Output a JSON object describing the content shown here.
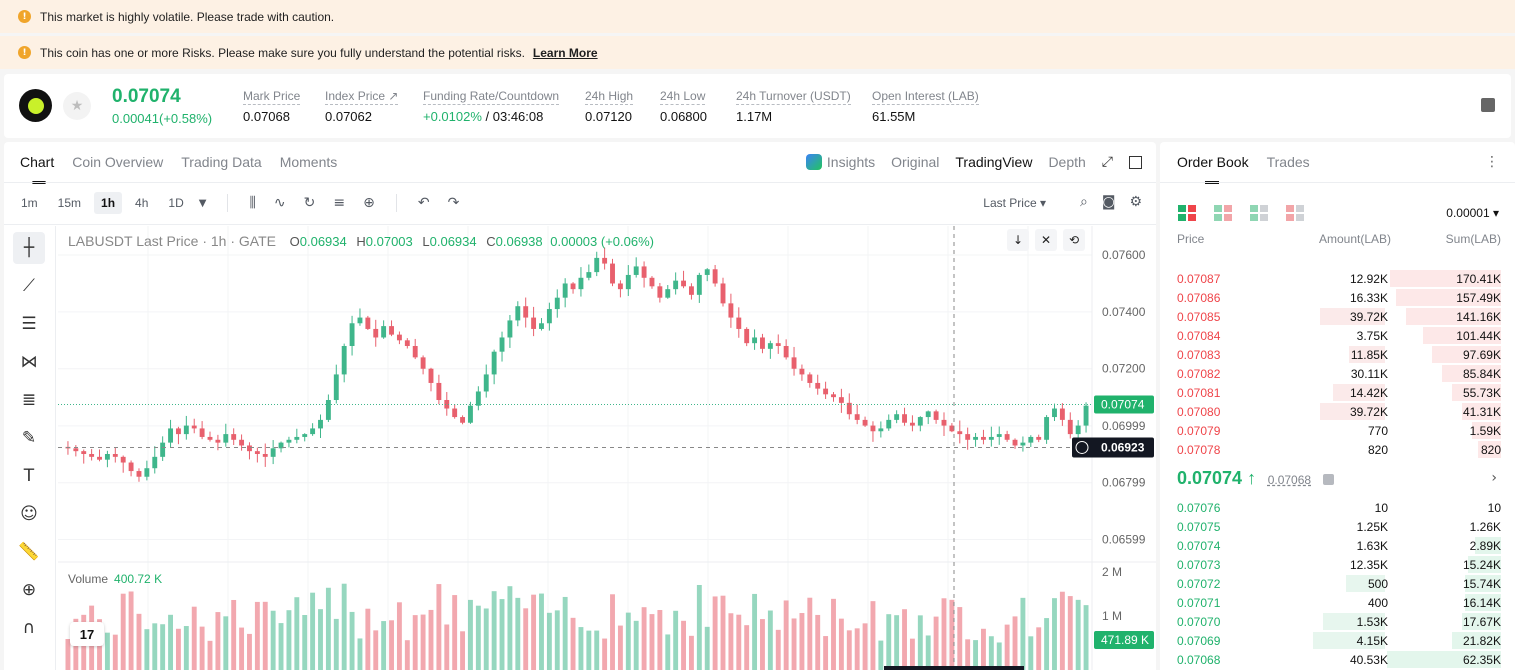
{
  "banners": {
    "volatile": "This market is highly volatile. Please trade with caution.",
    "risk": "This coin has one or more Risks. Please make sure you fully understand the potential risks.",
    "learn_more": "Learn More"
  },
  "ticker": {
    "last_price": "0.07074",
    "change": "0.00041(+0.58%)",
    "stats": [
      {
        "label": "Mark Price",
        "value": "0.07068"
      },
      {
        "label": "Index Price ↗",
        "value": "0.07062"
      },
      {
        "label": "Funding Rate/Countdown",
        "value_green": "+0.0102%",
        "value": " / 03:46:08"
      },
      {
        "label": "24h High",
        "value": "0.07120"
      },
      {
        "label": "24h Low",
        "value": "0.06800"
      },
      {
        "label": "24h Turnover (USDT)",
        "value": "1.17M"
      },
      {
        "label": "Open Interest (LAB)",
        "value": "61.55M"
      }
    ]
  },
  "chart_tabs": [
    "Chart",
    "Coin Overview",
    "Trading Data",
    "Moments"
  ],
  "view_tabs": {
    "insights": "Insights",
    "original": "Original",
    "tradingview": "TradingView",
    "depth": "Depth"
  },
  "intervals": [
    "1m",
    "15m",
    "1h",
    "4h",
    "1D"
  ],
  "price_source": "Last Price ▾",
  "legend": {
    "title": "LABUSDT Last Price · 1h · GATE",
    "o": "O",
    "o_val": "0.06934",
    "h": "H",
    "h_val": "0.07003",
    "l": "L",
    "l_val": "0.06934",
    "c": "C",
    "c_val": "0.06938",
    "chg": "0.00003 (+0.06%)"
  },
  "volume": {
    "label": "Volume",
    "value": "400.72 K",
    "last_label": "471.89 K"
  },
  "colors": {
    "up": "#3fb68b",
    "down": "#e8606d",
    "up_text": "#20b26c",
    "down_text": "#ef454a"
  },
  "chart_data": {
    "type": "candlestick",
    "price_axis_ticks": [
      "0.07600",
      "0.07400",
      "0.07200",
      "0.06999",
      "0.06799",
      "0.06599"
    ],
    "volume_axis_ticks": [
      "2 M",
      "1 M"
    ],
    "last_price_label": "0.07074",
    "crosshair_price_label": "0.06923",
    "ylim": [
      0.0652,
      0.0766
    ]
  },
  "order_book": {
    "tabs": [
      "Order Book",
      "Trades"
    ],
    "precision": "0.00001 ▾",
    "headers": [
      "Price",
      "Amount(LAB)",
      "Sum(LAB)"
    ],
    "asks": [
      {
        "price": "0.07087",
        "amount": "12.92K",
        "sum": "170.41K",
        "fill": 0.34,
        "afill": 0.0
      },
      {
        "price": "0.07086",
        "amount": "16.33K",
        "sum": "157.49K",
        "fill": 0.32,
        "afill": 0.0
      },
      {
        "price": "0.07085",
        "amount": "39.72K",
        "sum": "141.16K",
        "fill": 0.29,
        "afill": 0.2
      },
      {
        "price": "0.07084",
        "amount": "3.75K",
        "sum": "101.44K",
        "fill": 0.24,
        "afill": 0.0
      },
      {
        "price": "0.07083",
        "amount": "11.85K",
        "sum": "97.69K",
        "fill": 0.21,
        "afill": 0.11
      },
      {
        "price": "0.07082",
        "amount": "30.11K",
        "sum": "85.84K",
        "fill": 0.18,
        "afill": 0.0
      },
      {
        "price": "0.07081",
        "amount": "14.42K",
        "sum": "55.73K",
        "fill": 0.15,
        "afill": 0.16
      },
      {
        "price": "0.07080",
        "amount": "39.72K",
        "sum": "41.31K",
        "fill": 0.12,
        "afill": 0.2
      },
      {
        "price": "0.07079",
        "amount": "770",
        "sum": "1.59K",
        "fill": 0.09,
        "afill": 0.0
      },
      {
        "price": "0.07078",
        "amount": "820",
        "sum": "820",
        "fill": 0.07,
        "afill": 0.0
      }
    ],
    "mid_price": "0.07074 ↑",
    "mark_price": "0.07068",
    "bids": [
      {
        "price": "0.07076",
        "amount": "10",
        "sum": "10",
        "fill": 0.0,
        "afill": 0.0
      },
      {
        "price": "0.07075",
        "amount": "1.25K",
        "sum": "1.26K",
        "fill": 0.0,
        "afill": 0.0
      },
      {
        "price": "0.07074",
        "amount": "1.63K",
        "sum": "2.89K",
        "fill": 0.08,
        "afill": 0.0
      },
      {
        "price": "0.07073",
        "amount": "12.35K",
        "sum": "15.24K",
        "fill": 0.1,
        "afill": 0.0
      },
      {
        "price": "0.07072",
        "amount": "500",
        "sum": "15.74K",
        "fill": 0.11,
        "afill": 0.12
      },
      {
        "price": "0.07071",
        "amount": "400",
        "sum": "16.14K",
        "fill": 0.11,
        "afill": 0.0
      },
      {
        "price": "0.07070",
        "amount": "1.53K",
        "sum": "17.67K",
        "fill": 0.12,
        "afill": 0.19
      },
      {
        "price": "0.07069",
        "amount": "4.15K",
        "sum": "21.82K",
        "fill": 0.15,
        "afill": 0.22
      },
      {
        "price": "0.07068",
        "amount": "40.53K",
        "sum": "62.35K",
        "fill": 0.35,
        "afill": 0.0
      }
    ]
  }
}
